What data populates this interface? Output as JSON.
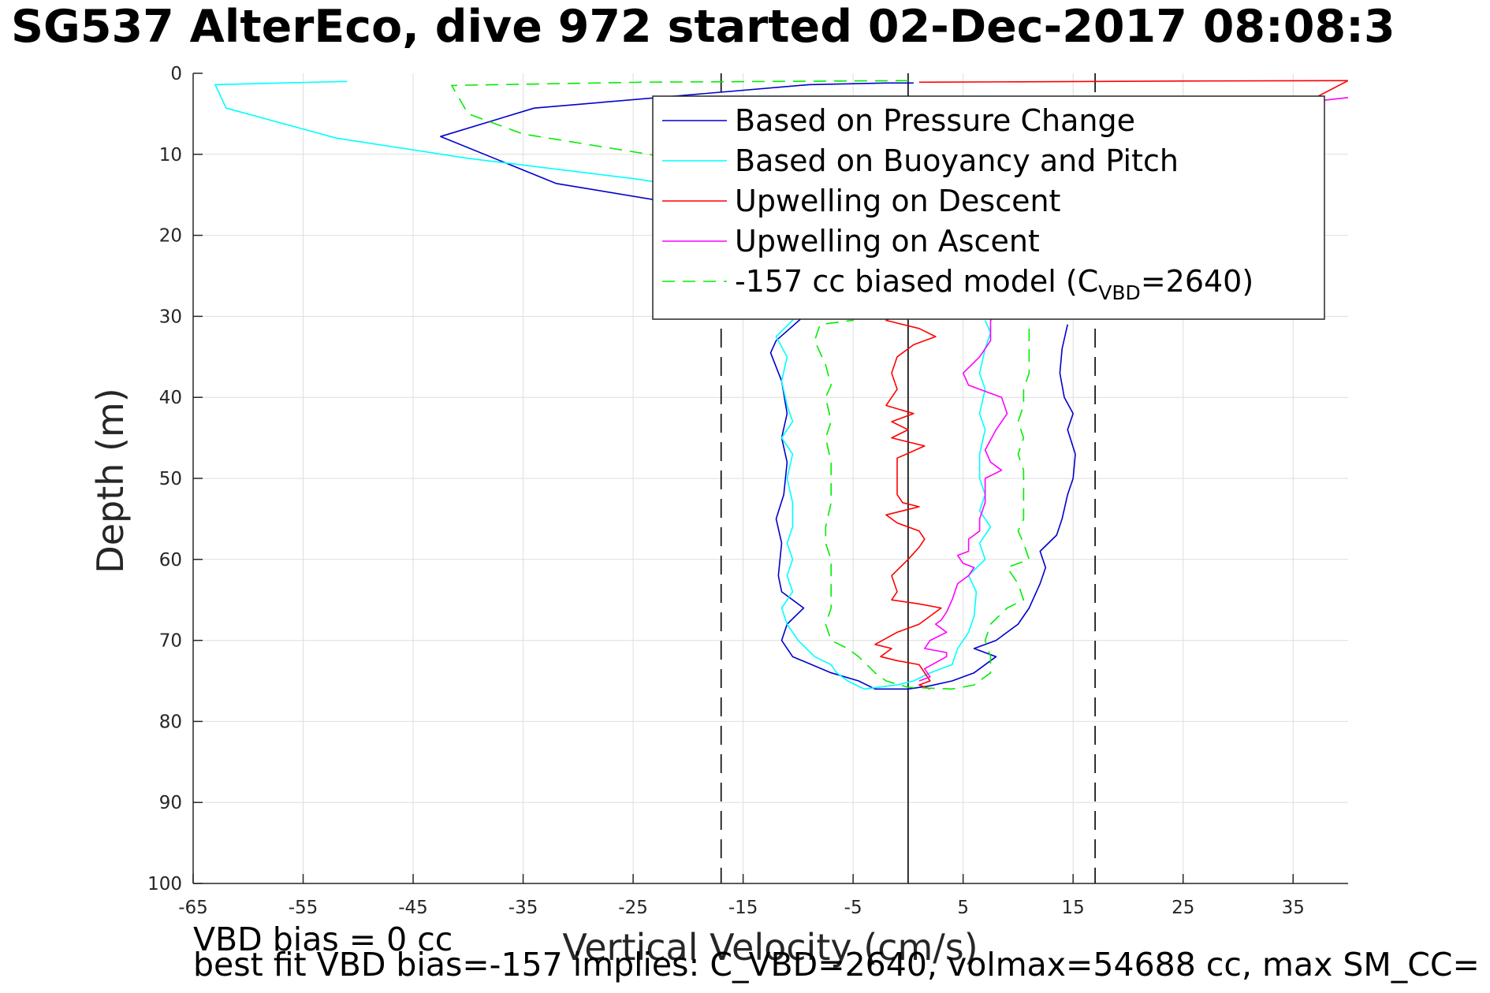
{
  "title": "SG537 AlterEco, dive 972 started 02-Dec-2017 08:08:3",
  "footer": {
    "line1": "VBD bias = 0 cc",
    "line2": "best fit VBD bias=-157 implies: C_VBD=2640, volmax=54688 cc, max SM_CC="
  },
  "colors": {
    "pressure": "#0000cd",
    "buoyancy": "#00ffff",
    "descent": "#ff0000",
    "ascent": "#ff00ff",
    "model": "#00ee00",
    "grid": "#dedede",
    "axis": "#262626"
  },
  "chart_data": {
    "type": "line",
    "xlabel": "Vertical Velocity (cm/s)",
    "ylabel": "Depth (m)",
    "xlim": [
      -65,
      40
    ],
    "ylim": [
      0,
      100
    ],
    "y_reversed": true,
    "grid": true,
    "xticks": [
      -65,
      -55,
      -45,
      -35,
      -25,
      -15,
      -5,
      5,
      15,
      25,
      35
    ],
    "yticks": [
      0,
      10,
      20,
      30,
      40,
      50,
      60,
      70,
      80,
      90,
      100
    ],
    "legend": {
      "placement": "top-right",
      "entries": [
        {
          "series": 0,
          "label": "Based on Pressure Change"
        },
        {
          "series": 1,
          "label": "Based on Buoyancy and Pitch"
        },
        {
          "series": 2,
          "label": "Upwelling on Descent"
        },
        {
          "series": 3,
          "label": "Upwelling on Ascent"
        },
        {
          "series": 4,
          "label": "-157 cc biased model (C",
          "sub": "VBD",
          "suffix": "=2640)"
        }
      ]
    },
    "reference_lines": [
      {
        "x": 0,
        "style": "solid"
      },
      {
        "x": -17,
        "style": "dashed"
      },
      {
        "x": 17,
        "style": "dashed"
      }
    ],
    "series": [
      {
        "name": "Based on Pressure Change",
        "color": "#0000cd",
        "dash": "solid",
        "points": [
          [
            0.5,
            1.2
          ],
          [
            -2,
            1.2
          ],
          [
            -9,
            1.4
          ],
          [
            -34,
            4.3
          ],
          [
            -42.5,
            7.8
          ],
          [
            -32,
            13.6
          ],
          [
            -20,
            16.3
          ],
          [
            -9.5,
            30
          ],
          [
            -12,
            33
          ],
          [
            -12.5,
            34.5
          ],
          [
            -11.5,
            38
          ],
          [
            -11,
            42
          ],
          [
            -11.5,
            45
          ],
          [
            -11,
            48
          ],
          [
            -11.3,
            52
          ],
          [
            -12,
            55
          ],
          [
            -11.5,
            58
          ],
          [
            -11.8,
            62
          ],
          [
            -11.5,
            64
          ],
          [
            -9.5,
            66
          ],
          [
            -11,
            68
          ],
          [
            -11.5,
            70
          ],
          [
            -10.5,
            72
          ],
          [
            -7,
            74
          ],
          [
            -4.5,
            75
          ],
          [
            -3,
            76
          ],
          [
            0,
            76
          ],
          [
            2,
            75.6
          ],
          [
            4,
            75
          ],
          [
            6,
            74
          ],
          [
            8,
            72
          ],
          [
            6,
            71
          ],
          [
            8,
            70
          ],
          [
            10,
            68
          ],
          [
            11,
            66
          ],
          [
            12,
            63
          ],
          [
            12.5,
            61
          ],
          [
            12,
            59
          ],
          [
            13.5,
            57
          ],
          [
            14,
            55
          ],
          [
            14.5,
            52
          ],
          [
            15,
            50
          ],
          [
            15.2,
            47
          ],
          [
            14.5,
            44
          ],
          [
            15,
            42
          ],
          [
            14.2,
            40
          ],
          [
            13.8,
            37
          ],
          [
            14,
            34
          ],
          [
            14.5,
            31
          ]
        ]
      },
      {
        "name": "Based on Buoyancy and Pitch",
        "color": "#00ffff",
        "dash": "solid",
        "points": [
          [
            -51,
            1
          ],
          [
            -63,
            1.4
          ],
          [
            -62,
            4.3
          ],
          [
            -52,
            8
          ],
          [
            -40,
            10.5
          ],
          [
            -25,
            13
          ],
          [
            -15,
            15
          ],
          [
            -10.5,
            30.5
          ],
          [
            -12,
            32.5
          ],
          [
            -11,
            35
          ],
          [
            -11.5,
            38
          ],
          [
            -11,
            41
          ],
          [
            -10.5,
            43
          ],
          [
            -11.5,
            45
          ],
          [
            -10.5,
            47
          ],
          [
            -11,
            50
          ],
          [
            -10.5,
            53
          ],
          [
            -10.5,
            56
          ],
          [
            -11,
            58
          ],
          [
            -10.5,
            60
          ],
          [
            -11,
            62
          ],
          [
            -10.5,
            64
          ],
          [
            -11.5,
            66
          ],
          [
            -11,
            68
          ],
          [
            -10,
            70
          ],
          [
            -8.5,
            72
          ],
          [
            -7,
            73
          ],
          [
            -6.5,
            74
          ],
          [
            -5.5,
            75
          ],
          [
            -4,
            76
          ],
          [
            -1,
            75.5
          ],
          [
            0.5,
            75
          ],
          [
            2,
            74
          ],
          [
            4,
            73
          ],
          [
            4.5,
            71
          ],
          [
            5.5,
            69
          ],
          [
            6,
            67
          ],
          [
            6.2,
            64
          ],
          [
            5.5,
            62
          ],
          [
            7,
            60
          ],
          [
            6.5,
            58
          ],
          [
            7.5,
            56
          ],
          [
            6.5,
            54
          ],
          [
            7,
            52
          ],
          [
            6.5,
            50
          ],
          [
            6.5,
            47
          ],
          [
            7,
            44
          ],
          [
            6.5,
            42
          ],
          [
            7,
            39
          ],
          [
            6.5,
            37
          ],
          [
            7,
            34
          ],
          [
            7.5,
            32
          ],
          [
            7,
            30.5
          ]
        ]
      },
      {
        "name": "Upwelling on Descent",
        "color": "#ff0000",
        "dash": "solid",
        "points": [
          [
            1,
            1.1
          ],
          [
            10,
            1.05
          ],
          [
            25,
            0.95
          ],
          [
            40,
            0.9
          ],
          [
            -2,
            30.5
          ],
          [
            1,
            31.5
          ],
          [
            2.5,
            32.5
          ],
          [
            0.5,
            33.5
          ],
          [
            -1,
            35
          ],
          [
            -1.5,
            37
          ],
          [
            -1,
            39
          ],
          [
            -2,
            41
          ],
          [
            0.5,
            42
          ],
          [
            -1.5,
            43
          ],
          [
            0,
            44
          ],
          [
            -1.5,
            45
          ],
          [
            1.5,
            46
          ],
          [
            -1,
            47.5
          ],
          [
            -1,
            49
          ],
          [
            -1,
            51
          ],
          [
            -1,
            52
          ],
          [
            -0.5,
            53
          ],
          [
            1,
            53.5
          ],
          [
            -2,
            54.5
          ],
          [
            -1,
            55.5
          ],
          [
            1,
            56.5
          ],
          [
            1.5,
            57.5
          ],
          [
            1,
            58.5
          ],
          [
            0,
            60
          ],
          [
            -1.5,
            62
          ],
          [
            -1,
            64
          ],
          [
            -1.5,
            65
          ],
          [
            1,
            65.5
          ],
          [
            3,
            66
          ],
          [
            1,
            68
          ],
          [
            -1,
            69
          ],
          [
            -3,
            70.5
          ],
          [
            -1.5,
            71
          ],
          [
            -2.5,
            72
          ],
          [
            -1,
            72.5
          ],
          [
            1,
            73
          ],
          [
            1.5,
            74
          ],
          [
            2,
            75
          ],
          [
            1,
            75.5
          ],
          [
            2,
            76
          ]
        ]
      },
      {
        "name": "Upwelling on Ascent",
        "color": "#ff00ff",
        "dash": "solid",
        "points": [
          [
            40,
            3
          ],
          [
            30,
            4.5
          ],
          [
            7.5,
            30.5
          ],
          [
            7.5,
            33
          ],
          [
            6.5,
            35
          ],
          [
            5,
            37
          ],
          [
            5.5,
            38.5
          ],
          [
            8.5,
            40
          ],
          [
            9,
            42
          ],
          [
            8,
            44
          ],
          [
            7,
            46.5
          ],
          [
            7.5,
            48
          ],
          [
            8.5,
            49
          ],
          [
            7,
            50
          ],
          [
            7,
            53
          ],
          [
            6.5,
            55
          ],
          [
            6.5,
            56.5
          ],
          [
            6,
            57
          ],
          [
            5.5,
            57.5
          ],
          [
            5.5,
            59
          ],
          [
            4.5,
            59.5
          ],
          [
            5,
            60.5
          ],
          [
            6,
            61
          ],
          [
            5.5,
            62
          ],
          [
            4.5,
            63
          ],
          [
            4,
            65
          ],
          [
            3.5,
            66.5
          ],
          [
            3,
            67.5
          ],
          [
            2.5,
            68
          ],
          [
            3.5,
            69
          ],
          [
            2,
            70
          ],
          [
            1.5,
            71
          ],
          [
            3.5,
            71.5
          ],
          [
            3.5,
            72
          ],
          [
            1.5,
            73.5
          ],
          [
            2,
            74.5
          ],
          [
            1,
            75
          ]
        ]
      },
      {
        "name": "-157 cc biased model (CVBD=2640)",
        "color": "#00ee00",
        "dash": "dashed",
        "points": [
          [
            0,
            0.9
          ],
          [
            -24,
            1.1
          ],
          [
            -41.5,
            1.5
          ],
          [
            -40,
            5
          ],
          [
            -35,
            7.5
          ],
          [
            -24,
            9.9
          ],
          [
            -13,
            12.6
          ],
          [
            -7,
            15
          ],
          [
            -5,
            30.5
          ],
          [
            -8,
            31
          ],
          [
            -8.5,
            33
          ],
          [
            -7.5,
            36
          ],
          [
            -7,
            38.5
          ],
          [
            -7.5,
            40
          ],
          [
            -7,
            43
          ],
          [
            -7.5,
            45
          ],
          [
            -7,
            48
          ],
          [
            -7,
            51
          ],
          [
            -7,
            53
          ],
          [
            -7.5,
            56
          ],
          [
            -7.5,
            58
          ],
          [
            -7,
            60
          ],
          [
            -7,
            62
          ],
          [
            -7,
            64
          ],
          [
            -7,
            66
          ],
          [
            -7.5,
            68
          ],
          [
            -7,
            70
          ],
          [
            -5.5,
            71
          ],
          [
            -4.5,
            72
          ],
          [
            -3,
            74
          ],
          [
            -2,
            75
          ],
          [
            0,
            75.8
          ],
          [
            4,
            76
          ],
          [
            6,
            75.5
          ],
          [
            7.5,
            74
          ],
          [
            7.5,
            72
          ],
          [
            7,
            70
          ],
          [
            7.5,
            68
          ],
          [
            9,
            66
          ],
          [
            10.5,
            65
          ],
          [
            10,
            63
          ],
          [
            9,
            61
          ],
          [
            11,
            60
          ],
          [
            10.5,
            58
          ],
          [
            10,
            56.5
          ],
          [
            10.5,
            55
          ],
          [
            10.5,
            53
          ],
          [
            10.5,
            51
          ],
          [
            10.5,
            49
          ],
          [
            10,
            47
          ],
          [
            10.5,
            45
          ],
          [
            10,
            43
          ],
          [
            10.5,
            41
          ],
          [
            10.5,
            39
          ],
          [
            11,
            37
          ],
          [
            11,
            35
          ],
          [
            11,
            33
          ],
          [
            11,
            31
          ]
        ]
      }
    ]
  }
}
